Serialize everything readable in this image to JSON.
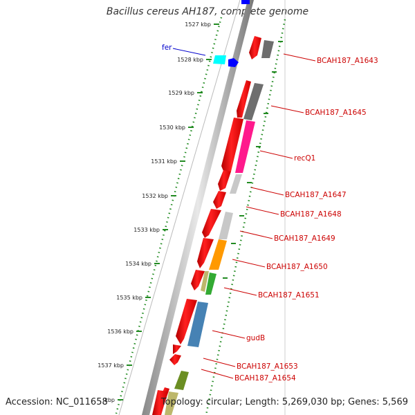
{
  "title": "Bacillus cereus AH187, complete genome",
  "footer": {
    "accession": "Accession: NC_011658",
    "summary": "Topology: circular; Length: 5,269,030 bp; Genes: 5,569"
  },
  "scale_unit": "kbp",
  "ticks": [
    {
      "label": "1527 kbp"
    },
    {
      "label": "1528 kbp"
    },
    {
      "label": "1529 kbp"
    },
    {
      "label": "1530 kbp"
    },
    {
      "label": "1531 kbp"
    },
    {
      "label": "1532 kbp"
    },
    {
      "label": "1533 kbp"
    },
    {
      "label": "1534 kbp"
    },
    {
      "label": "1535 kbp"
    },
    {
      "label": "1536 kbp"
    },
    {
      "label": "1537 kbp"
    },
    {
      "label": "kbp"
    }
  ],
  "gene_labels": [
    {
      "name": "fer",
      "color": "#0000cc"
    },
    {
      "name": "BCAH187_A1643",
      "color": "#cc0000"
    },
    {
      "name": "BCAH187_A1645",
      "color": "#cc0000"
    },
    {
      "name": "recQ1",
      "color": "#cc0000"
    },
    {
      "name": "BCAH187_A1647",
      "color": "#cc0000"
    },
    {
      "name": "BCAH187_A1648",
      "color": "#cc0000"
    },
    {
      "name": "BCAH187_A1649",
      "color": "#cc0000"
    },
    {
      "name": "BCAH187_A1650",
      "color": "#cc0000"
    },
    {
      "name": "BCAH187_A1651",
      "color": "#cc0000"
    },
    {
      "name": "gudB",
      "color": "#cc0000"
    },
    {
      "name": "BCAH187_A1653",
      "color": "#cc0000"
    },
    {
      "name": "BCAH187_A1654",
      "color": "#cc0000"
    }
  ],
  "feature_colors": {
    "cds": "#ff0000",
    "gray_dark": "#6e6e6e",
    "gray_light": "#c8c8c8",
    "pink": "#ff1a8c",
    "orange": "#ff9900",
    "green": "#33aa33",
    "blue": "#4682b4",
    "olive": "#6b8e23",
    "khaki": "#bdb76b",
    "cyan": "#00ffff",
    "navy": "#0000ff",
    "tick_green": "#228b22"
  }
}
